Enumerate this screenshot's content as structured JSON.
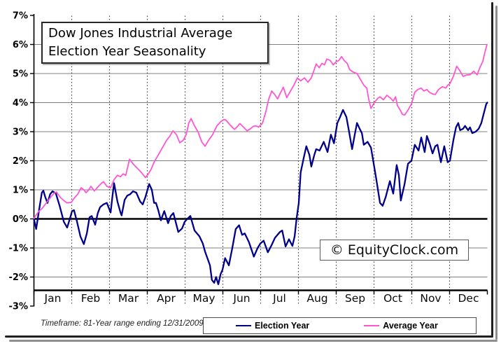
{
  "title_box": {
    "line1": "Dow Jones Industrial Average",
    "line2": "Election Year Seasonality"
  },
  "watermark": {
    "text": "© EquityClock.com"
  },
  "footer": {
    "timeframe": "Timeframe: 81-Year range ending 12/31/2009"
  },
  "legend": {
    "items": [
      {
        "label": "Election Year",
        "color": "#00008B"
      },
      {
        "label": "Average Year",
        "color": "#FF55D5"
      }
    ]
  },
  "colors": {
    "grid": "#808080",
    "zero_line": "#000000",
    "axis": "#000000",
    "month_divider": "#3a3a3a"
  },
  "chart_data": {
    "type": "line",
    "title": "Dow Jones Industrial Average Election Year Seasonality",
    "xlabel": "",
    "ylabel": "",
    "categories": [
      "Jan",
      "Feb",
      "Mar",
      "Apr",
      "May",
      "Jun",
      "Jul",
      "Aug",
      "Sep",
      "Oct",
      "Nov",
      "Dec"
    ],
    "ylim": [
      -3,
      7
    ],
    "y_tick_labels": [
      "7%",
      "6%",
      "5%",
      "4%",
      "3%",
      "2%",
      "1%",
      "0%",
      "-1%",
      "-2%",
      "-3%"
    ],
    "grid": true,
    "legend_position": "bottom",
    "series": [
      {
        "name": "Election Year",
        "color": "#00008B",
        "width": 2.3,
        "points": [
          [
            0,
            0
          ],
          [
            0.06,
            -0.35
          ],
          [
            0.13,
            0.25
          ],
          [
            0.21,
            0.9
          ],
          [
            0.25,
            0.97
          ],
          [
            0.3,
            0.75
          ],
          [
            0.36,
            0.55
          ],
          [
            0.43,
            0.85
          ],
          [
            0.49,
            0.95
          ],
          [
            0.58,
            0.88
          ],
          [
            0.68,
            0.45
          ],
          [
            0.79,
            -0.1
          ],
          [
            0.88,
            -0.3
          ],
          [
            0.95,
            0
          ],
          [
            1.01,
            0.27
          ],
          [
            1.06,
            0.3
          ],
          [
            1.14,
            -0.1
          ],
          [
            1.23,
            -0.6
          ],
          [
            1.32,
            -0.87
          ],
          [
            1.4,
            -0.5
          ],
          [
            1.47,
            0.05
          ],
          [
            1.53,
            0.1
          ],
          [
            1.62,
            -0.2
          ],
          [
            1.69,
            0.2
          ],
          [
            1.75,
            0.4
          ],
          [
            1.84,
            0.5
          ],
          [
            1.93,
            0.55
          ],
          [
            2.03,
            0.22
          ],
          [
            2.08,
            0.8
          ],
          [
            2.12,
            1.23
          ],
          [
            2.21,
            0.6
          ],
          [
            2.29,
            0.22
          ],
          [
            2.32,
            0.12
          ],
          [
            2.4,
            0.65
          ],
          [
            2.47,
            0.8
          ],
          [
            2.55,
            0.85
          ],
          [
            2.62,
            0.95
          ],
          [
            2.71,
            0.9
          ],
          [
            2.81,
            0.6
          ],
          [
            2.88,
            0.5
          ],
          [
            2.95,
            0.75
          ],
          [
            3.05,
            1.2
          ],
          [
            3.12,
            1
          ],
          [
            3.18,
            0.55
          ],
          [
            3.23,
            0.55
          ],
          [
            3.29,
            0.3
          ],
          [
            3.36,
            -0.05
          ],
          [
            3.45,
            0.27
          ],
          [
            3.55,
            -0.15
          ],
          [
            3.62,
            0.1
          ],
          [
            3.69,
            0.2
          ],
          [
            3.77,
            -0.2
          ],
          [
            3.82,
            -0.45
          ],
          [
            3.92,
            -0.33
          ],
          [
            3.99,
            -0.1
          ],
          [
            4.06,
            0
          ],
          [
            4.14,
            0.1
          ],
          [
            4.25,
            -0.4
          ],
          [
            4.38,
            -0.6
          ],
          [
            4.47,
            -0.85
          ],
          [
            4.53,
            -1.13
          ],
          [
            4.66,
            -1.6
          ],
          [
            4.71,
            -2.1
          ],
          [
            4.77,
            -2.2
          ],
          [
            4.82,
            -2
          ],
          [
            4.88,
            -2.25
          ],
          [
            4.94,
            -1.9
          ],
          [
            4.99,
            -1.75
          ],
          [
            5.06,
            -1.35
          ],
          [
            5.16,
            -1.6
          ],
          [
            5.25,
            -1
          ],
          [
            5.34,
            -0.35
          ],
          [
            5.43,
            -0.22
          ],
          [
            5.51,
            -0.55
          ],
          [
            5.58,
            -0.5
          ],
          [
            5.69,
            -0.8
          ],
          [
            5.82,
            -1.3
          ],
          [
            5.92,
            -1
          ],
          [
            5.99,
            -0.85
          ],
          [
            6.08,
            -0.75
          ],
          [
            6.19,
            -1.15
          ],
          [
            6.29,
            -0.9
          ],
          [
            6.38,
            -0.65
          ],
          [
            6.51,
            -0.45
          ],
          [
            6.57,
            -0.4
          ],
          [
            6.66,
            -0.95
          ],
          [
            6.75,
            -0.7
          ],
          [
            6.84,
            -0.93
          ],
          [
            6.9,
            -0.6
          ],
          [
            6.95,
            0
          ],
          [
            7.01,
            0.55
          ],
          [
            7.06,
            1.6
          ],
          [
            7.14,
            2.1
          ],
          [
            7.21,
            2.5
          ],
          [
            7.29,
            2.2
          ],
          [
            7.34,
            1.8
          ],
          [
            7.42,
            2.2
          ],
          [
            7.47,
            2.4
          ],
          [
            7.56,
            2.35
          ],
          [
            7.67,
            2.65
          ],
          [
            7.77,
            2.3
          ],
          [
            7.86,
            2.9
          ],
          [
            7.94,
            2.6
          ],
          [
            8.03,
            3.3
          ],
          [
            8.1,
            3.5
          ],
          [
            8.18,
            3.75
          ],
          [
            8.27,
            3.5
          ],
          [
            8.34,
            3
          ],
          [
            8.42,
            2.4
          ],
          [
            8.49,
            2.9
          ],
          [
            8.55,
            3.3
          ],
          [
            8.62,
            3.1
          ],
          [
            8.68,
            2.95
          ],
          [
            8.73,
            2.55
          ],
          [
            8.83,
            2.65
          ],
          [
            8.92,
            2.45
          ],
          [
            9.05,
            1.45
          ],
          [
            9.16,
            0.55
          ],
          [
            9.23,
            0.45
          ],
          [
            9.31,
            0.75
          ],
          [
            9.42,
            1.3
          ],
          [
            9.51,
            0.87
          ],
          [
            9.6,
            1.85
          ],
          [
            9.66,
            1.5
          ],
          [
            9.71,
            0.63
          ],
          [
            9.81,
            1.2
          ],
          [
            9.9,
            1.9
          ],
          [
            9.99,
            2
          ],
          [
            10.08,
            2.55
          ],
          [
            10.18,
            2.35
          ],
          [
            10.25,
            2.8
          ],
          [
            10.34,
            2.3
          ],
          [
            10.4,
            2.85
          ],
          [
            10.47,
            2.6
          ],
          [
            10.55,
            2.25
          ],
          [
            10.62,
            2.5
          ],
          [
            10.68,
            2.55
          ],
          [
            10.77,
            1.95
          ],
          [
            10.86,
            2.5
          ],
          [
            10.95,
            1.95
          ],
          [
            11.01,
            2
          ],
          [
            11.1,
            2.7
          ],
          [
            11.17,
            3.15
          ],
          [
            11.23,
            3.3
          ],
          [
            11.28,
            3.05
          ],
          [
            11.36,
            3.1
          ],
          [
            11.41,
            3.2
          ],
          [
            11.49,
            3.05
          ],
          [
            11.54,
            3.15
          ],
          [
            11.6,
            2.95
          ],
          [
            11.69,
            3
          ],
          [
            11.77,
            3.1
          ],
          [
            11.84,
            3.3
          ],
          [
            11.92,
            3.7
          ],
          [
            11.97,
            3.95
          ],
          [
            12,
            4
          ]
        ]
      },
      {
        "name": "Average Year",
        "color": "#FF55D5",
        "width": 1.8,
        "points": [
          [
            0,
            0.02
          ],
          [
            0.12,
            0.25
          ],
          [
            0.21,
            0.35
          ],
          [
            0.36,
            0.6
          ],
          [
            0.49,
            0.82
          ],
          [
            0.55,
            0.9
          ],
          [
            0.6,
            0.92
          ],
          [
            0.69,
            0.75
          ],
          [
            0.79,
            0.63
          ],
          [
            0.88,
            0.55
          ],
          [
            0.99,
            0.57
          ],
          [
            1.06,
            0.7
          ],
          [
            1.16,
            0.85
          ],
          [
            1.25,
            1.07
          ],
          [
            1.32,
            1
          ],
          [
            1.38,
            0.9
          ],
          [
            1.45,
            1
          ],
          [
            1.51,
            1.12
          ],
          [
            1.6,
            0.96
          ],
          [
            1.69,
            1.1
          ],
          [
            1.79,
            1.23
          ],
          [
            1.84,
            1.28
          ],
          [
            1.93,
            1.12
          ],
          [
            2.03,
            1.07
          ],
          [
            2.12,
            1.35
          ],
          [
            2.21,
            1.5
          ],
          [
            2.29,
            1.45
          ],
          [
            2.36,
            1.55
          ],
          [
            2.43,
            1.5
          ],
          [
            2.53,
            2.05
          ],
          [
            2.62,
            1.9
          ],
          [
            2.73,
            1.75
          ],
          [
            2.84,
            1.6
          ],
          [
            2.95,
            1.42
          ],
          [
            3.03,
            1.55
          ],
          [
            3.1,
            1.7
          ],
          [
            3.18,
            1.95
          ],
          [
            3.29,
            2.2
          ],
          [
            3.4,
            2.45
          ],
          [
            3.51,
            2.7
          ],
          [
            3.6,
            2.85
          ],
          [
            3.68,
            3.03
          ],
          [
            3.77,
            2.9
          ],
          [
            3.86,
            2.62
          ],
          [
            3.95,
            2.7
          ],
          [
            4.03,
            2.9
          ],
          [
            4.1,
            3.3
          ],
          [
            4.16,
            3.45
          ],
          [
            4.25,
            3.2
          ],
          [
            4.34,
            3
          ],
          [
            4.44,
            2.65
          ],
          [
            4.53,
            2.5
          ],
          [
            4.62,
            2.7
          ],
          [
            4.73,
            2.9
          ],
          [
            4.84,
            3.2
          ],
          [
            4.95,
            3.35
          ],
          [
            5.03,
            3.42
          ],
          [
            5.08,
            3.4
          ],
          [
            5.18,
            3.25
          ],
          [
            5.25,
            3.15
          ],
          [
            5.31,
            3.08
          ],
          [
            5.4,
            3.2
          ],
          [
            5.45,
            3.28
          ],
          [
            5.55,
            3.15
          ],
          [
            5.64,
            3.03
          ],
          [
            5.73,
            3.1
          ],
          [
            5.8,
            3.18
          ],
          [
            5.86,
            3.2
          ],
          [
            5.95,
            3.16
          ],
          [
            6.05,
            3.3
          ],
          [
            6.14,
            3.7
          ],
          [
            6.21,
            4.1
          ],
          [
            6.29,
            4.4
          ],
          [
            6.36,
            4.3
          ],
          [
            6.45,
            4.13
          ],
          [
            6.53,
            4.35
          ],
          [
            6.6,
            4.53
          ],
          [
            6.69,
            4.17
          ],
          [
            6.79,
            4.4
          ],
          [
            6.88,
            4.6
          ],
          [
            6.97,
            4.85
          ],
          [
            7.06,
            4.75
          ],
          [
            7.16,
            4.85
          ],
          [
            7.25,
            4.7
          ],
          [
            7.34,
            4.85
          ],
          [
            7.47,
            5.33
          ],
          [
            7.55,
            5.2
          ],
          [
            7.62,
            5.35
          ],
          [
            7.69,
            5.3
          ],
          [
            7.75,
            5.5
          ],
          [
            7.84,
            5.45
          ],
          [
            7.92,
            5.3
          ],
          [
            7.99,
            5.4
          ],
          [
            8.07,
            5.45
          ],
          [
            8.14,
            5.58
          ],
          [
            8.21,
            5.45
          ],
          [
            8.29,
            5.35
          ],
          [
            8.36,
            5.13
          ],
          [
            8.45,
            5.05
          ],
          [
            8.55,
            5
          ],
          [
            8.64,
            4.8
          ],
          [
            8.73,
            4.6
          ],
          [
            8.81,
            4.5
          ],
          [
            8.86,
            4.12
          ],
          [
            8.92,
            3.8
          ],
          [
            9.01,
            4
          ],
          [
            9.1,
            4.15
          ],
          [
            9.16,
            4.2
          ],
          [
            9.25,
            4.1
          ],
          [
            9.34,
            4.25
          ],
          [
            9.44,
            4.15
          ],
          [
            9.51,
            4.05
          ],
          [
            9.57,
            4.2
          ],
          [
            9.62,
            3.9
          ],
          [
            9.69,
            3.75
          ],
          [
            9.75,
            3.6
          ],
          [
            9.81,
            3.57
          ],
          [
            9.88,
            3.7
          ],
          [
            9.99,
            3.95
          ],
          [
            10.08,
            4.36
          ],
          [
            10.16,
            4.45
          ],
          [
            10.25,
            4.5
          ],
          [
            10.32,
            4.4
          ],
          [
            10.4,
            4.45
          ],
          [
            10.47,
            4.35
          ],
          [
            10.55,
            4.3
          ],
          [
            10.62,
            4.28
          ],
          [
            10.71,
            4.45
          ],
          [
            10.81,
            4.55
          ],
          [
            10.9,
            4.5
          ],
          [
            10.95,
            4.6
          ],
          [
            11.01,
            4.65
          ],
          [
            11.1,
            4.9
          ],
          [
            11.19,
            5.25
          ],
          [
            11.27,
            5.1
          ],
          [
            11.36,
            4.9
          ],
          [
            11.45,
            4.95
          ],
          [
            11.54,
            4.96
          ],
          [
            11.64,
            5.08
          ],
          [
            11.73,
            4.96
          ],
          [
            11.8,
            5.2
          ],
          [
            11.88,
            5.42
          ],
          [
            11.93,
            5.7
          ],
          [
            11.99,
            6
          ]
        ]
      }
    ]
  }
}
